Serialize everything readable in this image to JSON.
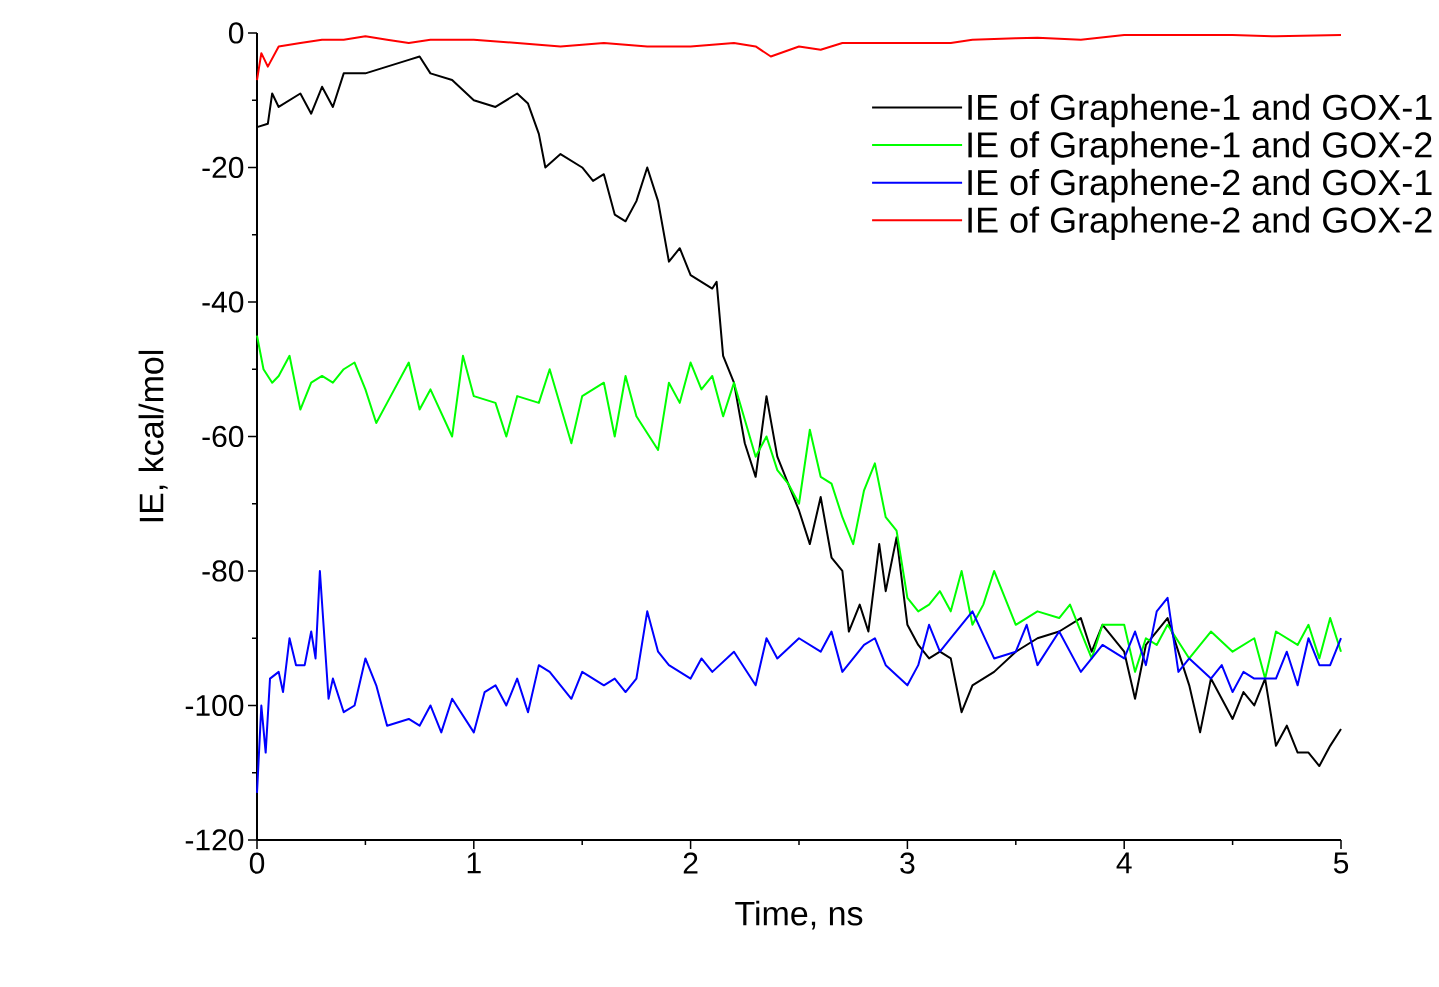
{
  "chart_data": {
    "type": "line",
    "xlabel": "Time, ns",
    "ylabel": "IE, kcal/mol",
    "xlim": [
      0,
      5
    ],
    "ylim": [
      -120,
      0
    ],
    "xticks": [
      0,
      1,
      2,
      3,
      4,
      5
    ],
    "yticks": [
      -120,
      -100,
      -80,
      -60,
      -40,
      -20,
      0
    ],
    "legend": "top right",
    "line_style": "solid",
    "series": [
      {
        "name": "IE of Graphene-1 and GOX-1",
        "color": "#000000",
        "x": [
          0,
          0.05,
          0.07,
          0.1,
          0.2,
          0.25,
          0.3,
          0.35,
          0.4,
          0.5,
          0.6,
          0.7,
          0.75,
          0.8,
          0.9,
          1.0,
          1.1,
          1.2,
          1.25,
          1.3,
          1.33,
          1.4,
          1.5,
          1.55,
          1.6,
          1.65,
          1.7,
          1.75,
          1.8,
          1.85,
          1.9,
          1.95,
          2.0,
          2.05,
          2.1,
          2.12,
          2.15,
          2.2,
          2.25,
          2.3,
          2.35,
          2.4,
          2.45,
          2.5,
          2.55,
          2.6,
          2.65,
          2.7,
          2.73,
          2.78,
          2.82,
          2.87,
          2.9,
          2.95,
          3.0,
          3.05,
          3.1,
          3.15,
          3.2,
          3.25,
          3.3,
          3.4,
          3.5,
          3.6,
          3.7,
          3.8,
          3.85,
          3.9,
          4.0,
          4.05,
          4.1,
          4.2,
          4.3,
          4.35,
          4.4,
          4.5,
          4.55,
          4.6,
          4.65,
          4.7,
          4.75,
          4.8,
          4.85,
          4.9,
          4.95,
          5.0
        ],
        "values": [
          -14,
          -13.5,
          -9,
          -11,
          -9,
          -12,
          -8,
          -11,
          -6,
          -6,
          -5,
          -4,
          -3.5,
          -6,
          -7,
          -10,
          -11,
          -9,
          -10.5,
          -15,
          -20,
          -18,
          -20,
          -22,
          -21,
          -27,
          -28,
          -25,
          -20,
          -25,
          -34,
          -32,
          -36,
          -37,
          -38,
          -37,
          -48,
          -52,
          -61,
          -66,
          -54,
          -63,
          -67,
          -71,
          -76,
          -69,
          -78,
          -80,
          -89,
          -85,
          -89,
          -76,
          -83,
          -75,
          -88,
          -91,
          -93,
          -92,
          -93,
          -101,
          -97,
          -95,
          -92,
          -90,
          -89,
          -87,
          -92,
          -88,
          -92,
          -99,
          -91,
          -87,
          -97,
          -104,
          -96,
          -102,
          -98,
          -100,
          -96,
          -106,
          -103,
          -107,
          -107,
          -109,
          -106,
          -103.5
        ]
      },
      {
        "name": "IE of Graphene-1 and GOX-2",
        "color": "#00ff00",
        "x": [
          0,
          0.03,
          0.07,
          0.1,
          0.15,
          0.2,
          0.25,
          0.3,
          0.35,
          0.4,
          0.45,
          0.5,
          0.55,
          0.6,
          0.7,
          0.75,
          0.8,
          0.9,
          0.95,
          1.0,
          1.1,
          1.15,
          1.2,
          1.3,
          1.35,
          1.45,
          1.5,
          1.6,
          1.65,
          1.7,
          1.75,
          1.85,
          1.9,
          1.95,
          2.0,
          2.05,
          2.1,
          2.15,
          2.2,
          2.3,
          2.35,
          2.4,
          2.45,
          2.5,
          2.55,
          2.6,
          2.65,
          2.7,
          2.75,
          2.8,
          2.85,
          2.9,
          2.95,
          3.0,
          3.05,
          3.1,
          3.15,
          3.2,
          3.25,
          3.3,
          3.35,
          3.4,
          3.5,
          3.6,
          3.7,
          3.75,
          3.8,
          3.85,
          3.9,
          4.0,
          4.05,
          4.1,
          4.15,
          4.2,
          4.3,
          4.4,
          4.5,
          4.6,
          4.65,
          4.7,
          4.8,
          4.85,
          4.9,
          4.95,
          5.0
        ],
        "values": [
          -45,
          -50,
          -52,
          -51,
          -48,
          -56,
          -52,
          -51,
          -52,
          -50,
          -49,
          -53,
          -58,
          -55,
          -49,
          -56,
          -53,
          -60,
          -48,
          -54,
          -55,
          -60,
          -54,
          -55,
          -50,
          -61,
          -54,
          -52,
          -60,
          -51,
          -57,
          -62,
          -52,
          -55,
          -49,
          -53,
          -51,
          -57,
          -52,
          -63,
          -60,
          -65,
          -67,
          -70,
          -59,
          -66,
          -67,
          -72,
          -76,
          -68,
          -64,
          -72,
          -74,
          -84,
          -86,
          -85,
          -83,
          -86,
          -80,
          -88,
          -85,
          -80,
          -88,
          -86,
          -87,
          -85,
          -89,
          -93,
          -88,
          -88,
          -95,
          -90,
          -91,
          -88,
          -93,
          -89,
          -92,
          -90,
          -96,
          -89,
          -91,
          -88,
          -93,
          -87,
          -92
        ]
      },
      {
        "name": "IE of Graphene-2 and GOX-1",
        "color": "#0000ff",
        "x": [
          0,
          0.02,
          0.04,
          0.06,
          0.1,
          0.12,
          0.15,
          0.18,
          0.22,
          0.25,
          0.27,
          0.29,
          0.33,
          0.35,
          0.4,
          0.45,
          0.5,
          0.55,
          0.6,
          0.7,
          0.75,
          0.8,
          0.85,
          0.9,
          1.0,
          1.05,
          1.1,
          1.15,
          1.2,
          1.25,
          1.3,
          1.35,
          1.4,
          1.45,
          1.5,
          1.6,
          1.65,
          1.7,
          1.75,
          1.8,
          1.85,
          1.9,
          2.0,
          2.05,
          2.1,
          2.2,
          2.3,
          2.35,
          2.4,
          2.5,
          2.6,
          2.65,
          2.7,
          2.8,
          2.85,
          2.9,
          3.0,
          3.05,
          3.1,
          3.15,
          3.2,
          3.3,
          3.4,
          3.5,
          3.55,
          3.6,
          3.7,
          3.8,
          3.9,
          4.0,
          4.05,
          4.1,
          4.15,
          4.2,
          4.25,
          4.3,
          4.4,
          4.45,
          4.5,
          4.55,
          4.6,
          4.7,
          4.75,
          4.8,
          4.85,
          4.9,
          4.95,
          5.0
        ],
        "values": [
          -113,
          -100,
          -107,
          -96,
          -95,
          -98,
          -90,
          -94,
          -94,
          -89,
          -93,
          -80,
          -99,
          -96,
          -101,
          -100,
          -93,
          -97,
          -103,
          -102,
          -103,
          -100,
          -104,
          -99,
          -104,
          -98,
          -97,
          -100,
          -96,
          -101,
          -94,
          -95,
          -97,
          -99,
          -95,
          -97,
          -96,
          -98,
          -96,
          -86,
          -92,
          -94,
          -96,
          -93,
          -95,
          -92,
          -97,
          -90,
          -93,
          -90,
          -92,
          -89,
          -95,
          -91,
          -90,
          -94,
          -97,
          -94,
          -88,
          -92,
          -90,
          -86,
          -93,
          -92,
          -88,
          -94,
          -89,
          -95,
          -91,
          -93,
          -89,
          -94,
          -86,
          -84,
          -95,
          -93,
          -96,
          -94,
          -98,
          -95,
          -96,
          -96,
          -92,
          -97,
          -90,
          -94,
          -94,
          -90
        ]
      },
      {
        "name": "IE of Graphene-2 and GOX-2",
        "color": "#ff0000",
        "x": [
          0,
          0.02,
          0.05,
          0.1,
          0.2,
          0.3,
          0.4,
          0.5,
          0.6,
          0.7,
          0.8,
          1.0,
          1.2,
          1.4,
          1.6,
          1.8,
          2.0,
          2.2,
          2.3,
          2.37,
          2.5,
          2.6,
          2.7,
          3.0,
          3.2,
          3.3,
          3.5,
          3.6,
          3.8,
          4.0,
          4.5,
          4.7,
          5.0
        ],
        "values": [
          -7,
          -3,
          -5,
          -2,
          -1.5,
          -1,
          -1,
          -0.5,
          -1,
          -1.5,
          -1,
          -1,
          -1.5,
          -2,
          -1.5,
          -2,
          -2,
          -1.5,
          -2,
          -3.5,
          -2,
          -2.5,
          -1.5,
          -1.5,
          -1.5,
          -1,
          -0.8,
          -0.7,
          -1,
          -0.3,
          -0.3,
          -0.5,
          -0.3
        ]
      }
    ]
  }
}
